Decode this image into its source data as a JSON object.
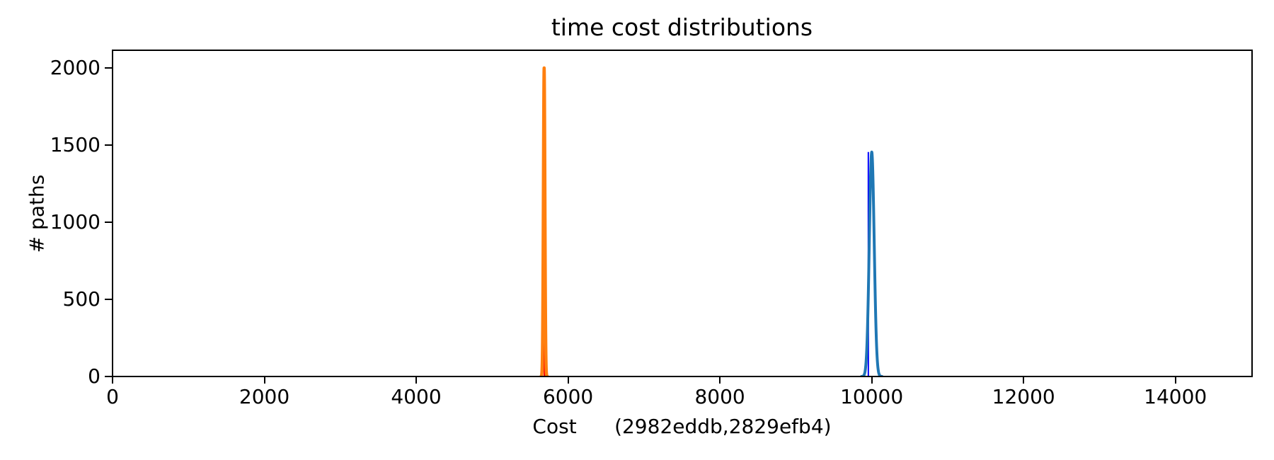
{
  "chart_data": {
    "type": "line",
    "title": "time cost distributions",
    "xlabel": "Cost      (2982eddb,2829efb4)",
    "ylabel": "# paths",
    "xlim": [
      0,
      15000
    ],
    "ylim": [
      0,
      2110
    ],
    "x_ticks": [
      0,
      2000,
      4000,
      6000,
      8000,
      10000,
      12000,
      14000
    ],
    "y_ticks": [
      0,
      500,
      1000,
      1500,
      2000
    ],
    "grid": false,
    "legend": false,
    "background_color": "#ffffff",
    "axis_color": "#000000",
    "series": [
      {
        "name": "orange-distribution",
        "shape": "gaussian",
        "mean": 5685,
        "std": 10,
        "peak": 2000,
        "color": "#ff7f0e",
        "line_width": 4.5
      },
      {
        "name": "blue-distribution",
        "shape": "gaussian",
        "mean": 10000,
        "std": 32,
        "peak": 1455,
        "color": "#1f77b4",
        "line_width": 4
      }
    ],
    "vlines": [
      {
        "name": "orange-mean-line",
        "x": 5690,
        "ymax": 2000,
        "color": "#ff0000",
        "line_width": 2.5
      },
      {
        "name": "blue-mean-line",
        "x": 9955,
        "ymax": 1455,
        "color": "#0000ff",
        "line_width": 2
      }
    ]
  }
}
